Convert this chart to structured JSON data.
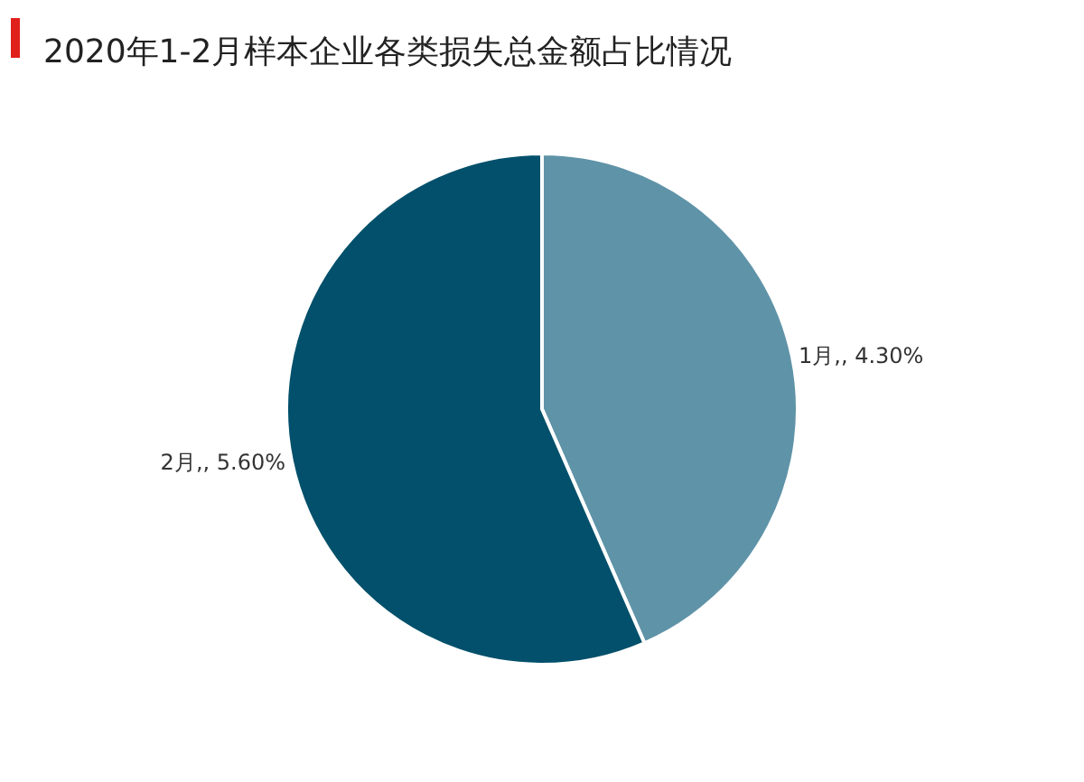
{
  "chart_data": {
    "type": "pie",
    "title": "2020年1-2月样本企业各类损失总金额占比情况",
    "categories": [
      "1月",
      "2月"
    ],
    "values": [
      4.3,
      5.6
    ],
    "value_labels": [
      ",, 4.30%",
      ",, 5.60%"
    ],
    "colors": [
      "#5f93a8",
      "#02506b"
    ],
    "legend": false
  }
}
